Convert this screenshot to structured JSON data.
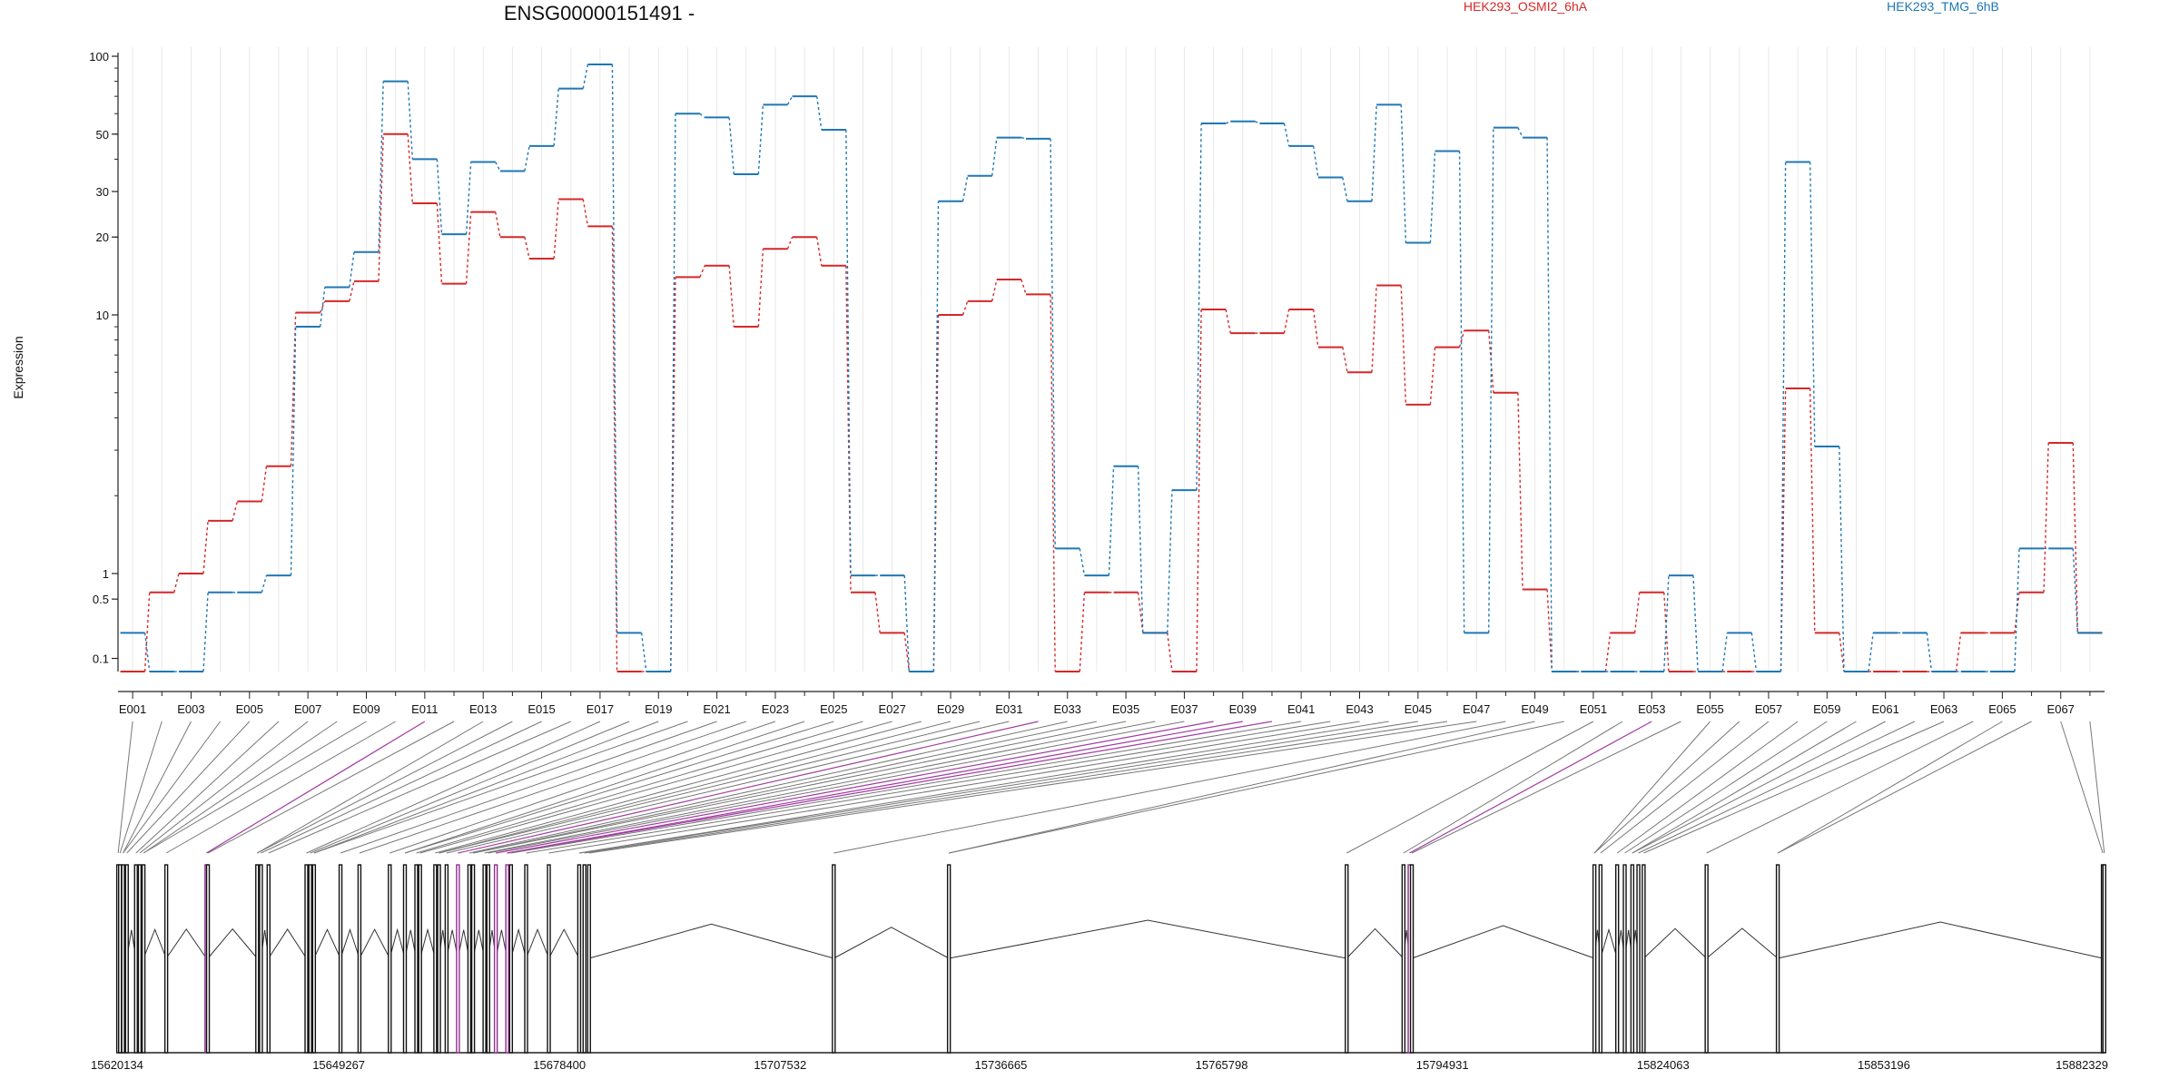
{
  "title": "ENSG00000151491 -",
  "legend": [
    {
      "name": "HEK293_OSMI2_6hA",
      "color": "#d62728"
    },
    {
      "name": "HEK293_TMG_6hB",
      "color": "#1f77b4"
    }
  ],
  "ylabel": "Expression",
  "genomic_tick_labels": [
    "15620134",
    "15649267",
    "15678400",
    "15707532",
    "15736665",
    "15765798",
    "15794931",
    "15824063",
    "15853196",
    "15882329"
  ],
  "chart_data": {
    "type": "line",
    "title": "ENSG00000151491 -",
    "ylabel": "Expression",
    "yscale": "log",
    "yticks": [
      0.1,
      0.5,
      1,
      10,
      20,
      30,
      50,
      100
    ],
    "ytick_labels": [
      "0.1",
      "0.5",
      "1",
      "10",
      "20",
      "30",
      "50",
      "100"
    ],
    "ylim": [
      0.07,
      100
    ],
    "grid": "vertical",
    "legend_position": "top",
    "categories": [
      "E001",
      "E002",
      "E003",
      "E004",
      "E005",
      "E006",
      "E007",
      "E008",
      "E009",
      "E010",
      "E011",
      "E012",
      "E013",
      "E014",
      "E015",
      "E016",
      "E017",
      "E018",
      "E019",
      "E020",
      "E021",
      "E022",
      "E023",
      "E024",
      "E025",
      "E026",
      "E027",
      "E028",
      "E029",
      "E030",
      "E031",
      "E032",
      "E033",
      "E034",
      "E035",
      "E036",
      "E037",
      "E038",
      "E039",
      "E040",
      "E041",
      "E042",
      "E043",
      "E044",
      "E045",
      "E046",
      "E047",
      "E048",
      "E049",
      "E050",
      "E051",
      "E052",
      "E053",
      "E054",
      "E055",
      "E056",
      "E057",
      "E058",
      "E059",
      "E060",
      "E061",
      "E062",
      "E063",
      "E064",
      "E065",
      "E066",
      "E067",
      "E068"
    ],
    "xtick_labels": [
      "E001",
      "E003",
      "E005",
      "E007",
      "E009",
      "E011",
      "E013",
      "E015",
      "E017",
      "E019",
      "E021",
      "E023",
      "E025",
      "E027",
      "E029",
      "E031",
      "E033",
      "E035",
      "E037",
      "E039",
      "E041",
      "E043",
      "E045",
      "E047",
      "E049",
      "E051",
      "E053",
      "E055",
      "E057",
      "E059",
      "E061",
      "E063",
      "E065",
      "E067"
    ],
    "series": [
      {
        "name": "HEK293_OSMI2_6hA",
        "color": "#d62728",
        "values": [
          0.07,
          0.6,
          1.0,
          1.6,
          1.9,
          2.6,
          10.2,
          11.3,
          13.5,
          50,
          27,
          13.2,
          25,
          20,
          16.5,
          28,
          22,
          0.07,
          0.07,
          14,
          15.5,
          9,
          18,
          20,
          15.5,
          0.6,
          0.2,
          0.07,
          10,
          11.3,
          13.7,
          12,
          0.07,
          0.6,
          0.6,
          0.2,
          0.07,
          10.5,
          8.5,
          8.5,
          10.5,
          7.5,
          6,
          13,
          4.5,
          7.5,
          8.7,
          5,
          0.65,
          0.07,
          0.07,
          0.2,
          0.6,
          0.07,
          0.07,
          0.07,
          0.07,
          5.2,
          0.2,
          0.07,
          0.07,
          0.07,
          0.07,
          0.2,
          0.2,
          0.6,
          3.2,
          0.2
        ]
      },
      {
        "name": "HEK293_TMG_6hB",
        "color": "#1f77b4",
        "values": [
          0.2,
          0.07,
          0.07,
          0.6,
          0.6,
          0.95,
          9,
          12.8,
          17.5,
          80,
          40,
          20.5,
          39,
          36,
          45,
          75,
          93,
          0.2,
          0.07,
          60,
          58,
          35,
          65,
          70,
          52,
          0.95,
          0.95,
          0.07,
          27.5,
          34.5,
          48.5,
          48,
          1.25,
          0.95,
          2.6,
          0.2,
          2.1,
          55,
          56,
          55,
          45,
          34,
          27.5,
          65,
          19,
          43,
          0.2,
          53,
          48.5,
          0.07,
          0.07,
          0.07,
          0.07,
          0.95,
          0.07,
          0.2,
          0.07,
          39,
          3.1,
          0.07,
          0.2,
          0.2,
          0.07,
          0.07,
          0.07,
          1.25,
          1.25,
          0.2
        ]
      }
    ],
    "genomic_coordinates": {
      "start": 15620134,
      "end": 15882329,
      "ticks": [
        15620134,
        15649267,
        15678400,
        15707532,
        15736665,
        15765798,
        15794931,
        15824063,
        15853196,
        15882329
      ]
    },
    "exon_genomic_positions": [
      15620150,
      15620400,
      15620800,
      15621300,
      15622500,
      15623000,
      15623500,
      15626500,
      15631800,
      15632000,
      15638500,
      15639000,
      15640000,
      15645000,
      15645500,
      15646000,
      15649500,
      15652000,
      15656000,
      15658000,
      15659500,
      15660000,
      15662000,
      15662500,
      15663500,
      15665000,
      15666500,
      15667000,
      15668500,
      15669000,
      15670000,
      15671500,
      15672000,
      15674000,
      15677000,
      15681000,
      15681700,
      15682300,
      15714600,
      15729800,
      15782300,
      15789800,
      15790600,
      15790900,
      15815000,
      15815800,
      15818000,
      15819000,
      15820000,
      15820800,
      15821500,
      15829800,
      15839200,
      15882100,
      15882300
    ],
    "highlighted_exon_genomic_positions": [
      15631800,
      15665000,
      15670000,
      15671500,
      15790600
    ]
  }
}
